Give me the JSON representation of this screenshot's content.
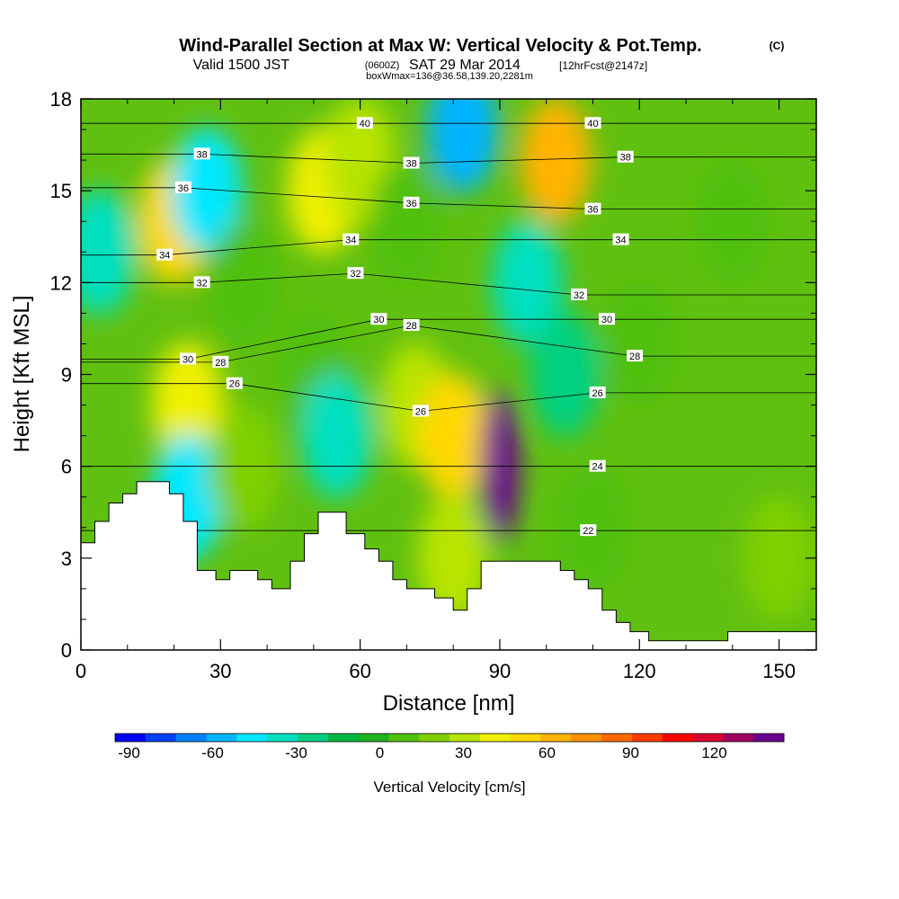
{
  "chart_data": {
    "type": "heatmap",
    "title": "Wind-Parallel Section at Max W: Vertical Velocity & Pot.Temp.",
    "title_units": "(C)",
    "subtitle_pre": "Valid 1500 JST",
    "subtitle_utc": "(0600Z)",
    "subtitle_date": "SAT 29 Mar 2014",
    "subtitle_fcst": "[12hrFcst@2147z]",
    "subtitle2": "boxWmax=136@36.58,139.20,2281m",
    "xlabel": "Distance [nm]",
    "ylabel": "Height [Kft MSL]",
    "xlim": [
      0,
      158
    ],
    "ylim": [
      0,
      18
    ],
    "x_ticks": [
      "0",
      "30",
      "60",
      "90",
      "120",
      "150"
    ],
    "x_tick_values": [
      0,
      30,
      60,
      90,
      120,
      150
    ],
    "y_ticks": [
      "0",
      "3",
      "6",
      "9",
      "12",
      "15",
      "18"
    ],
    "y_tick_values": [
      0,
      3,
      6,
      9,
      12,
      15,
      18
    ],
    "colorbar": {
      "label": "Vertical Velocity [cm/s]",
      "min": -95,
      "max": 145,
      "tick_labels": [
        "-90",
        "-60",
        "-30",
        "0",
        "30",
        "60",
        "90",
        "120"
      ],
      "tick_values": [
        -90,
        -60,
        -30,
        0,
        30,
        60,
        90,
        120
      ],
      "colors": [
        "#0000ff",
        "#0040ff",
        "#0080ff",
        "#00b4ff",
        "#00e8ff",
        "#00e0c0",
        "#00d080",
        "#00b840",
        "#20b020",
        "#50c010",
        "#80d000",
        "#b8e400",
        "#f0f000",
        "#ffd800",
        "#ffb400",
        "#ff9000",
        "#ff6800",
        "#ff3c00",
        "#ff0000",
        "#d80030",
        "#a00060",
        "#6a0090"
      ]
    },
    "velocity_cells": [
      {
        "x": 4,
        "y": 13,
        "w": -35
      },
      {
        "x": 20,
        "y": 14,
        "w": 55
      },
      {
        "x": 27,
        "y": 15,
        "w": -50
      },
      {
        "x": 23,
        "y": 8,
        "w": 40
      },
      {
        "x": 23,
        "y": 5,
        "w": -50
      },
      {
        "x": 35,
        "y": 12,
        "w": 5
      },
      {
        "x": 35,
        "y": 6,
        "w": 15
      },
      {
        "x": 50,
        "y": 9,
        "w": 10
      },
      {
        "x": 55,
        "y": 7,
        "w": -30
      },
      {
        "x": 52,
        "y": 15,
        "w": 40
      },
      {
        "x": 60,
        "y": 16,
        "w": 25
      },
      {
        "x": 70,
        "y": 14,
        "w": 5
      },
      {
        "x": 72,
        "y": 8,
        "w": 30
      },
      {
        "x": 80,
        "y": 7,
        "w": 55
      },
      {
        "x": 80,
        "y": 3,
        "w": 35
      },
      {
        "x": 82,
        "y": 17,
        "w": -60
      },
      {
        "x": 90,
        "y": 6,
        "w": 140
      },
      {
        "x": 96,
        "y": 12,
        "w": -40
      },
      {
        "x": 102,
        "y": 16,
        "w": 65
      },
      {
        "x": 104,
        "y": 9,
        "w": -20
      },
      {
        "x": 110,
        "y": 4,
        "w": 10
      },
      {
        "x": 120,
        "y": 10,
        "w": 10
      },
      {
        "x": 140,
        "y": 14,
        "w": 5
      },
      {
        "x": 150,
        "y": 3,
        "w": 20
      }
    ],
    "theta_contour_labels": [
      {
        "value": "40",
        "x": 61,
        "y": 17.2
      },
      {
        "value": "40",
        "x": 110,
        "y": 17.2
      },
      {
        "value": "38",
        "x": 26,
        "y": 16.2
      },
      {
        "value": "38",
        "x": 71,
        "y": 15.9
      },
      {
        "value": "38",
        "x": 117,
        "y": 16.1
      },
      {
        "value": "36",
        "x": 22,
        "y": 15.1
      },
      {
        "value": "36",
        "x": 71,
        "y": 14.6
      },
      {
        "value": "36",
        "x": 110,
        "y": 14.4
      },
      {
        "value": "34",
        "x": 18,
        "y": 12.9
      },
      {
        "value": "34",
        "x": 58,
        "y": 13.4
      },
      {
        "value": "34",
        "x": 116,
        "y": 13.4
      },
      {
        "value": "32",
        "x": 26,
        "y": 12.0
      },
      {
        "value": "32",
        "x": 59,
        "y": 12.3
      },
      {
        "value": "32",
        "x": 107,
        "y": 11.6
      },
      {
        "value": "30",
        "x": 64,
        "y": 10.8
      },
      {
        "value": "30",
        "x": 23,
        "y": 9.5
      },
      {
        "value": "30",
        "x": 113,
        "y": 10.8
      },
      {
        "value": "28",
        "x": 71,
        "y": 10.6
      },
      {
        "value": "28",
        "x": 30,
        "y": 9.4
      },
      {
        "value": "28",
        "x": 119,
        "y": 9.6
      },
      {
        "value": "26",
        "x": 33,
        "y": 8.7
      },
      {
        "value": "26",
        "x": 73,
        "y": 7.8
      },
      {
        "value": "26",
        "x": 111,
        "y": 8.4
      },
      {
        "value": "24",
        "x": 111,
        "y": 6.0
      },
      {
        "value": "22",
        "x": 109,
        "y": 3.9
      }
    ],
    "terrain_height": [
      [
        0,
        3.5
      ],
      [
        3,
        3.5
      ],
      [
        3,
        4.2
      ],
      [
        6,
        4.2
      ],
      [
        6,
        4.8
      ],
      [
        9,
        4.8
      ],
      [
        9,
        5.1
      ],
      [
        12,
        5.1
      ],
      [
        12,
        5.5
      ],
      [
        19,
        5.5
      ],
      [
        19,
        5.1
      ],
      [
        22,
        5.1
      ],
      [
        22,
        4.2
      ],
      [
        25,
        4.2
      ],
      [
        25,
        2.6
      ],
      [
        29,
        2.6
      ],
      [
        29,
        2.3
      ],
      [
        32,
        2.3
      ],
      [
        32,
        2.6
      ],
      [
        38,
        2.6
      ],
      [
        38,
        2.3
      ],
      [
        41,
        2.3
      ],
      [
        41,
        2.0
      ],
      [
        45,
        2.0
      ],
      [
        45,
        2.9
      ],
      [
        48,
        2.9
      ],
      [
        48,
        3.8
      ],
      [
        51,
        3.8
      ],
      [
        51,
        4.5
      ],
      [
        57,
        4.5
      ],
      [
        57,
        3.8
      ],
      [
        61,
        3.8
      ],
      [
        61,
        3.3
      ],
      [
        64,
        3.3
      ],
      [
        64,
        2.9
      ],
      [
        67,
        2.9
      ],
      [
        67,
        2.3
      ],
      [
        70,
        2.3
      ],
      [
        70,
        2.0
      ],
      [
        76,
        2.0
      ],
      [
        76,
        1.7
      ],
      [
        80,
        1.7
      ],
      [
        80,
        1.3
      ],
      [
        83,
        1.3
      ],
      [
        83,
        2.0
      ],
      [
        86,
        2.0
      ],
      [
        86,
        2.9
      ],
      [
        103,
        2.9
      ],
      [
        103,
        2.6
      ],
      [
        106,
        2.6
      ],
      [
        106,
        2.3
      ],
      [
        109,
        2.3
      ],
      [
        109,
        2.0
      ],
      [
        112,
        2.0
      ],
      [
        112,
        1.3
      ],
      [
        115,
        1.3
      ],
      [
        115,
        0.9
      ],
      [
        118,
        0.9
      ],
      [
        118,
        0.6
      ],
      [
        122,
        0.6
      ],
      [
        122,
        0.3
      ],
      [
        139,
        0.3
      ],
      [
        139,
        0.6
      ],
      [
        158,
        0.6
      ]
    ]
  }
}
